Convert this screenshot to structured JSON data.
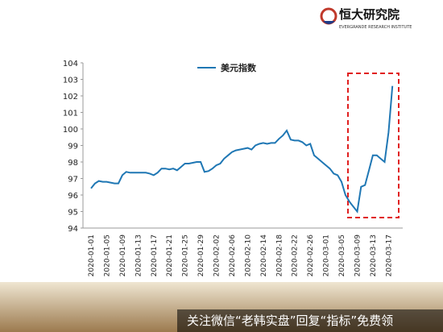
{
  "header": {
    "title": "恒大研究院",
    "subtitle": "EVERGRANDE RESEARCH INSTITUTE"
  },
  "footer": {
    "text": "关注微信“老韩实盘”回复“指标”免费领"
  },
  "chart_data": {
    "type": "line",
    "categories": [
      "2020-01-01",
      null,
      null,
      null,
      "2020-01-05",
      null,
      null,
      null,
      "2020-01-09",
      null,
      null,
      null,
      "2020-01-13",
      null,
      null,
      null,
      "2020-01-17",
      null,
      null,
      null,
      "2020-01-21",
      null,
      null,
      null,
      "2020-01-25",
      null,
      null,
      null,
      "2020-01-29",
      null,
      null,
      null,
      "2020-02-02",
      null,
      null,
      null,
      "2020-02-06",
      null,
      null,
      null,
      "2020-02-10",
      null,
      null,
      null,
      "2020-02-14",
      null,
      null,
      null,
      "2020-02-18",
      null,
      null,
      null,
      "2020-02-22",
      null,
      null,
      null,
      "2020-02-26",
      null,
      null,
      null,
      "2020-03-01",
      null,
      null,
      null,
      "2020-03-05",
      null,
      null,
      null,
      "2020-03-09",
      null,
      null,
      null,
      "2020-03-13",
      null,
      null,
      null,
      "2020-03-17",
      null
    ],
    "series": [
      {
        "name": "美元指数",
        "color": "#1f77b4",
        "values": [
          96.4,
          96.7,
          96.85,
          96.8,
          96.8,
          96.75,
          96.7,
          96.7,
          97.2,
          97.4,
          97.35,
          97.35,
          97.35,
          97.35,
          97.35,
          97.3,
          97.2,
          97.35,
          97.6,
          97.6,
          97.55,
          97.6,
          97.5,
          97.7,
          97.9,
          97.9,
          97.95,
          98.0,
          98.0,
          97.4,
          97.45,
          97.6,
          97.8,
          97.9,
          98.2,
          98.4,
          98.6,
          98.7,
          98.75,
          98.8,
          98.85,
          98.75,
          99.0,
          99.1,
          99.15,
          99.1,
          99.15,
          99.15,
          99.4,
          99.6,
          99.9,
          99.35,
          99.3,
          99.3,
          99.2,
          99.0,
          99.1,
          98.4,
          98.2,
          98.0,
          97.8,
          97.6,
          97.3,
          97.2,
          96.8,
          96.0,
          95.6,
          95.3,
          95.0,
          96.5,
          96.6,
          97.5,
          98.4,
          98.4,
          98.2,
          98.0,
          99.8,
          102.6
        ]
      }
    ],
    "ylim": [
      94,
      104
    ],
    "yticks": [
      94,
      95,
      96,
      97,
      98,
      99,
      100,
      101,
      102,
      103,
      104
    ],
    "grid": false
  }
}
